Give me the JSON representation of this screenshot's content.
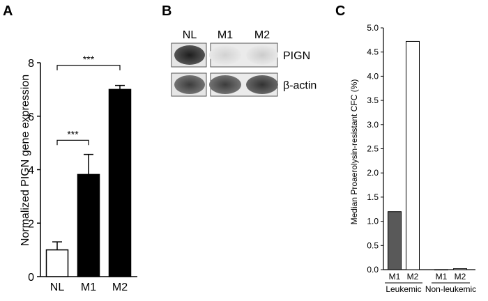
{
  "panels": {
    "a_letter": "A",
    "b_letter": "B",
    "c_letter": "C"
  },
  "chart_data": [
    {
      "type": "bar",
      "panel": "A",
      "ylabel": "Normalized PIGN gene expression",
      "xlabel": "",
      "categories": [
        "NL",
        "M1",
        "M2"
      ],
      "values": [
        1.0,
        3.82,
        7.0
      ],
      "errors": [
        0.3,
        0.75,
        0.15
      ],
      "bar_colors": [
        "#ffffff",
        "#000000",
        "#000000"
      ],
      "ylim": [
        0,
        8
      ],
      "yticks": [
        0,
        2,
        4,
        6,
        8
      ],
      "significance": [
        {
          "from": "NL",
          "to": "M1",
          "label": "***",
          "level": 5.1
        },
        {
          "from": "NL",
          "to": "M2",
          "label": "***",
          "level": 7.9
        }
      ]
    },
    {
      "type": "bar",
      "panel": "C",
      "ylabel": "Median Proaerolysin-resistant CFC    (%)",
      "xlabel": "",
      "categories": [
        "M1",
        "M2",
        "M1",
        "M2"
      ],
      "values": [
        1.2,
        4.72,
        0.0,
        0.02
      ],
      "bar_colors": [
        "#595959",
        "#ffffff",
        "#595959",
        "#ffffff"
      ],
      "groups": [
        {
          "label": "Leukemic",
          "members": [
            0,
            1
          ]
        },
        {
          "label": "Non-leukemic",
          "members": [
            2,
            3
          ]
        }
      ],
      "ylim": [
        0,
        5
      ],
      "yticks": [
        "0.0",
        "0.5",
        "1.0",
        "1.5",
        "2.0",
        "2.5",
        "3.0",
        "3.5",
        "4.0",
        "4.5",
        "5.0"
      ]
    }
  ],
  "blot": {
    "lanes": [
      "NL",
      "M1",
      "M2"
    ],
    "rows": [
      {
        "label": "PIGN",
        "intensities": [
          0.95,
          0.05,
          0.08
        ]
      },
      {
        "label": "β-actin",
        "intensities": [
          0.8,
          0.8,
          0.85
        ]
      }
    ]
  }
}
